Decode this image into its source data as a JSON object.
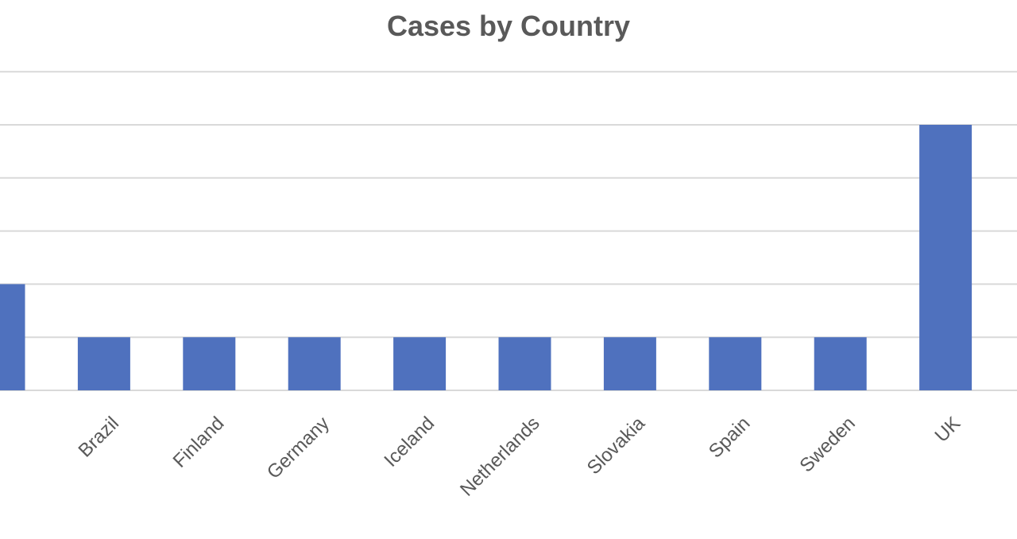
{
  "chart_data": {
    "type": "bar",
    "title": "Cases by Country",
    "xlabel": "",
    "ylabel": "",
    "categories": [
      "",
      "Brazil",
      "Finland",
      "Germany",
      "Iceland",
      "Netherlands",
      "Slovakia",
      "Spain",
      "Sweden",
      "UK"
    ],
    "values": [
      2,
      1,
      1,
      1,
      1,
      1,
      1,
      1,
      1,
      5
    ],
    "ylim": [
      0,
      6
    ],
    "grid": true,
    "legend": "none",
    "colors": {
      "bar": "#4F71BE",
      "grid": "#D9D9D9",
      "text": "#595959"
    }
  }
}
